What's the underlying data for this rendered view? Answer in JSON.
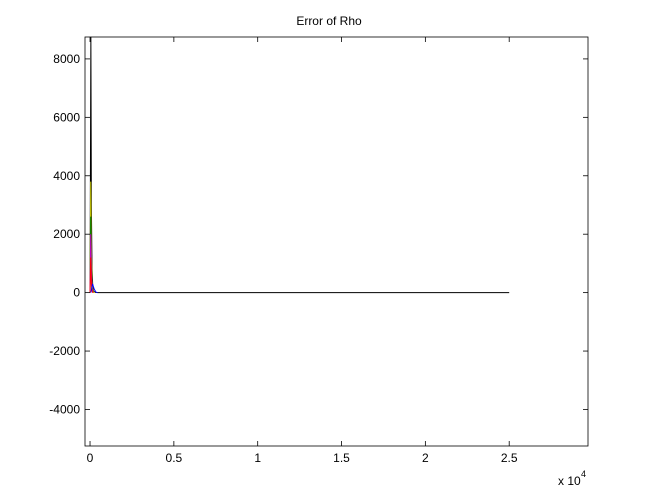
{
  "chart_data": {
    "type": "line",
    "title": "Error of Rho",
    "xlabel": "",
    "ylabel": "",
    "x_exponent_label": "x 10",
    "x_exponent_power": "4",
    "x_ticks": [
      0,
      0.5,
      1,
      1.5,
      2,
      2.5
    ],
    "x_tick_labels": [
      "0",
      "0.5",
      "1",
      "1.5",
      "2",
      "2.5"
    ],
    "y_ticks": [
      -4000,
      -2000,
      0,
      2000,
      4000,
      6000,
      8000
    ],
    "y_tick_labels": [
      "-4000",
      "-2000",
      "0",
      "2000",
      "4000",
      "6000",
      "8000"
    ],
    "xlim": [
      -0.03,
      2.97
    ],
    "ylim": [
      -5250,
      8750
    ],
    "grid": false,
    "series": [
      {
        "color": "#000000",
        "x": [
          0,
          0.005,
          0.008,
          0.012,
          0.016,
          0.02,
          0.03,
          0.05,
          2.5
        ],
        "y": [
          0,
          8750,
          3000,
          800,
          250,
          60,
          10,
          0,
          0
        ]
      },
      {
        "color": "#bfbf00",
        "x": [
          0,
          0.004,
          0.008,
          0.012,
          0.016,
          0.02,
          0.03
        ],
        "y": [
          0,
          3800,
          1500,
          400,
          100,
          20,
          0
        ]
      },
      {
        "color": "#008000",
        "x": [
          0,
          0.004,
          0.008,
          0.012,
          0.016,
          0.02
        ],
        "y": [
          0,
          2600,
          900,
          200,
          40,
          0
        ]
      },
      {
        "color": "#bf00bf",
        "x": [
          0,
          0.004,
          0.008,
          0.012,
          0.016,
          0.02
        ],
        "y": [
          0,
          2000,
          700,
          150,
          30,
          0
        ]
      },
      {
        "color": "#ff0000",
        "x": [
          0,
          0.004,
          0.008,
          0.012,
          0.016,
          0.02
        ],
        "y": [
          0,
          1200,
          300,
          60,
          10,
          0
        ]
      },
      {
        "color": "#0000ff",
        "x": [
          0.005,
          0.015,
          0.025,
          0.035,
          0.045
        ],
        "y": [
          0,
          300,
          120,
          20,
          0
        ]
      }
    ]
  }
}
